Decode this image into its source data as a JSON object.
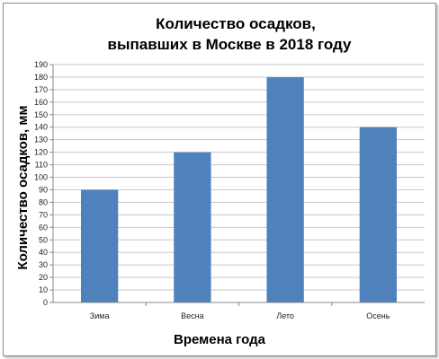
{
  "chart_data": {
    "type": "bar",
    "title": "Количество  осадков,",
    "subtitle": "выпавших  в Москве в 2018 году",
    "xlabel": "Времена года",
    "ylabel": "Количество осадков, мм",
    "categories": [
      "Зима",
      "Весна",
      "Лето",
      "Осень"
    ],
    "values": [
      90,
      120,
      180,
      140
    ],
    "ylim": [
      0,
      190
    ],
    "ytick_step": 10,
    "grid": true,
    "legend": "none",
    "bar_color": "#4f81bd",
    "grid_color": "#c8c8c8"
  }
}
